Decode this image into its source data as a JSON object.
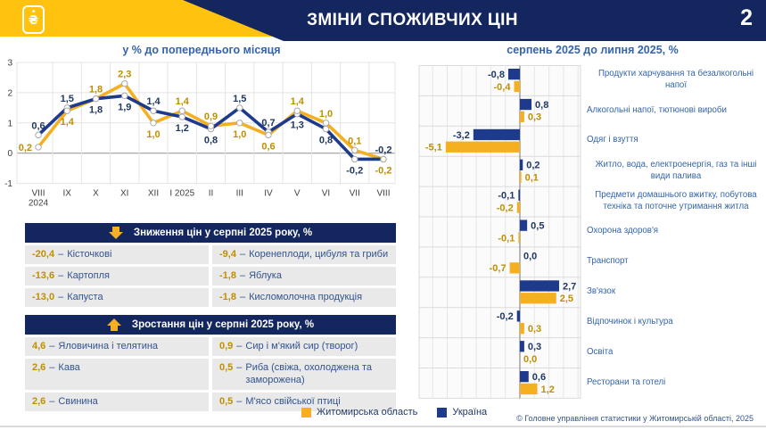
{
  "header": {
    "title": "ЗМІНИ СПОЖИВЧИХ ЦІН",
    "page_number": "2",
    "logo_symbol": "₴"
  },
  "colors": {
    "navy": "#14265E",
    "series_blue": "#1E3A8C",
    "series_yellow": "#F5B021",
    "label_blue": "#1F3864",
    "label_gold": "#BF8F00",
    "title_blue": "#3465A8",
    "header_yellow": "#FFC20E"
  },
  "chart_data": [
    {
      "type": "line",
      "title": "у % до попереднього місяця",
      "categories": [
        "VIII 2024",
        "IX",
        "X",
        "XI",
        "XII",
        "I 2025",
        "II",
        "III",
        "IV",
        "V",
        "VI",
        "VII",
        "VIII"
      ],
      "series": [
        {
          "name": "Україна",
          "values": [
            0.6,
            1.5,
            1.8,
            1.9,
            1.4,
            1.2,
            0.8,
            1.5,
            0.7,
            1.3,
            0.8,
            -0.2,
            -0.2
          ]
        },
        {
          "name": "Житомирська область",
          "values": [
            0.2,
            1.4,
            1.8,
            2.3,
            1.0,
            1.4,
            0.9,
            1.0,
            0.6,
            1.4,
            1.0,
            0.1,
            -0.2
          ]
        }
      ],
      "ylim": [
        -1,
        3
      ],
      "yticks": [
        3,
        2,
        1,
        0,
        -1
      ],
      "grid": true,
      "label_sides": {
        "ua": [
          "above",
          "above",
          "below",
          "below",
          "above",
          "below",
          "below",
          "above",
          "above",
          "below",
          "below",
          "below",
          "above"
        ],
        "zh": [
          "left",
          "below",
          "above",
          "above",
          "below",
          "above",
          "above",
          "below",
          "below",
          "above",
          "above",
          "above",
          "below"
        ]
      }
    },
    {
      "type": "bar",
      "title": "серпень 2025 до липня 2025, %",
      "categories": [
        "Продукти харчування та безалкогольні напої",
        "Алкогольні напої, тютюнові вироби",
        "Одяг і взуття",
        "Житло, вода, електроенергія, газ та інші види палива",
        "Предмети домашнього вжитку, побутова техніка та поточне утримання житла",
        "Охорона здоров'я",
        "Транспорт",
        "Зв'язок",
        "Відпочинок і культура",
        "Освіта",
        "Ресторани та готелі"
      ],
      "series": [
        {
          "name": "Україна",
          "values": [
            -0.8,
            0.8,
            -3.2,
            0.2,
            -0.1,
            0.5,
            0.0,
            2.7,
            -0.2,
            0.3,
            0.6
          ]
        },
        {
          "name": "Житомирська область",
          "values": [
            -0.4,
            0.3,
            -5.1,
            0.1,
            -0.2,
            -0.1,
            -0.7,
            2.5,
            0.3,
            0.0,
            1.2
          ]
        }
      ],
      "xlim": [
        -7,
        4
      ],
      "grid": true,
      "legend_position": "bottom"
    }
  ],
  "decrease_table": {
    "title": "Зниження цін у серпні 2025 року, %",
    "rows": [
      [
        {
          "value": "-20,4",
          "label": "Кісточкові"
        },
        {
          "value": "-9,4",
          "label": "Коренеплоди, цибуля та гриби"
        }
      ],
      [
        {
          "value": "-13,6",
          "label": "Картопля"
        },
        {
          "value": "-1,8",
          "label": "Яблука"
        }
      ],
      [
        {
          "value": "-13,0",
          "label": "Капуста"
        },
        {
          "value": "-1,8",
          "label": "Кисломолочна продукція"
        }
      ]
    ]
  },
  "increase_table": {
    "title": "Зростання цін у серпні 2025 року, %",
    "rows": [
      [
        {
          "value": "4,6",
          "label": "Яловичина і телятина"
        },
        {
          "value": "0,9",
          "label": "Сир і м'який сир (творог)"
        }
      ],
      [
        {
          "value": "2,6",
          "label": "Кава"
        },
        {
          "value": "0,5",
          "label": "Риба (свіжа, охолоджена та заморожена)"
        }
      ],
      [
        {
          "value": "2,6",
          "label": "Свинина"
        },
        {
          "value": "0,5",
          "label": "М'ясо свійської птиці"
        }
      ]
    ]
  },
  "legend": {
    "items": [
      {
        "label": "Житомирська область",
        "color": "#F5B021"
      },
      {
        "label": "Україна",
        "color": "#1E3A8C"
      }
    ]
  },
  "footer": {
    "copyright": "© Головне управління статистики у Житомирській області, 2025"
  }
}
